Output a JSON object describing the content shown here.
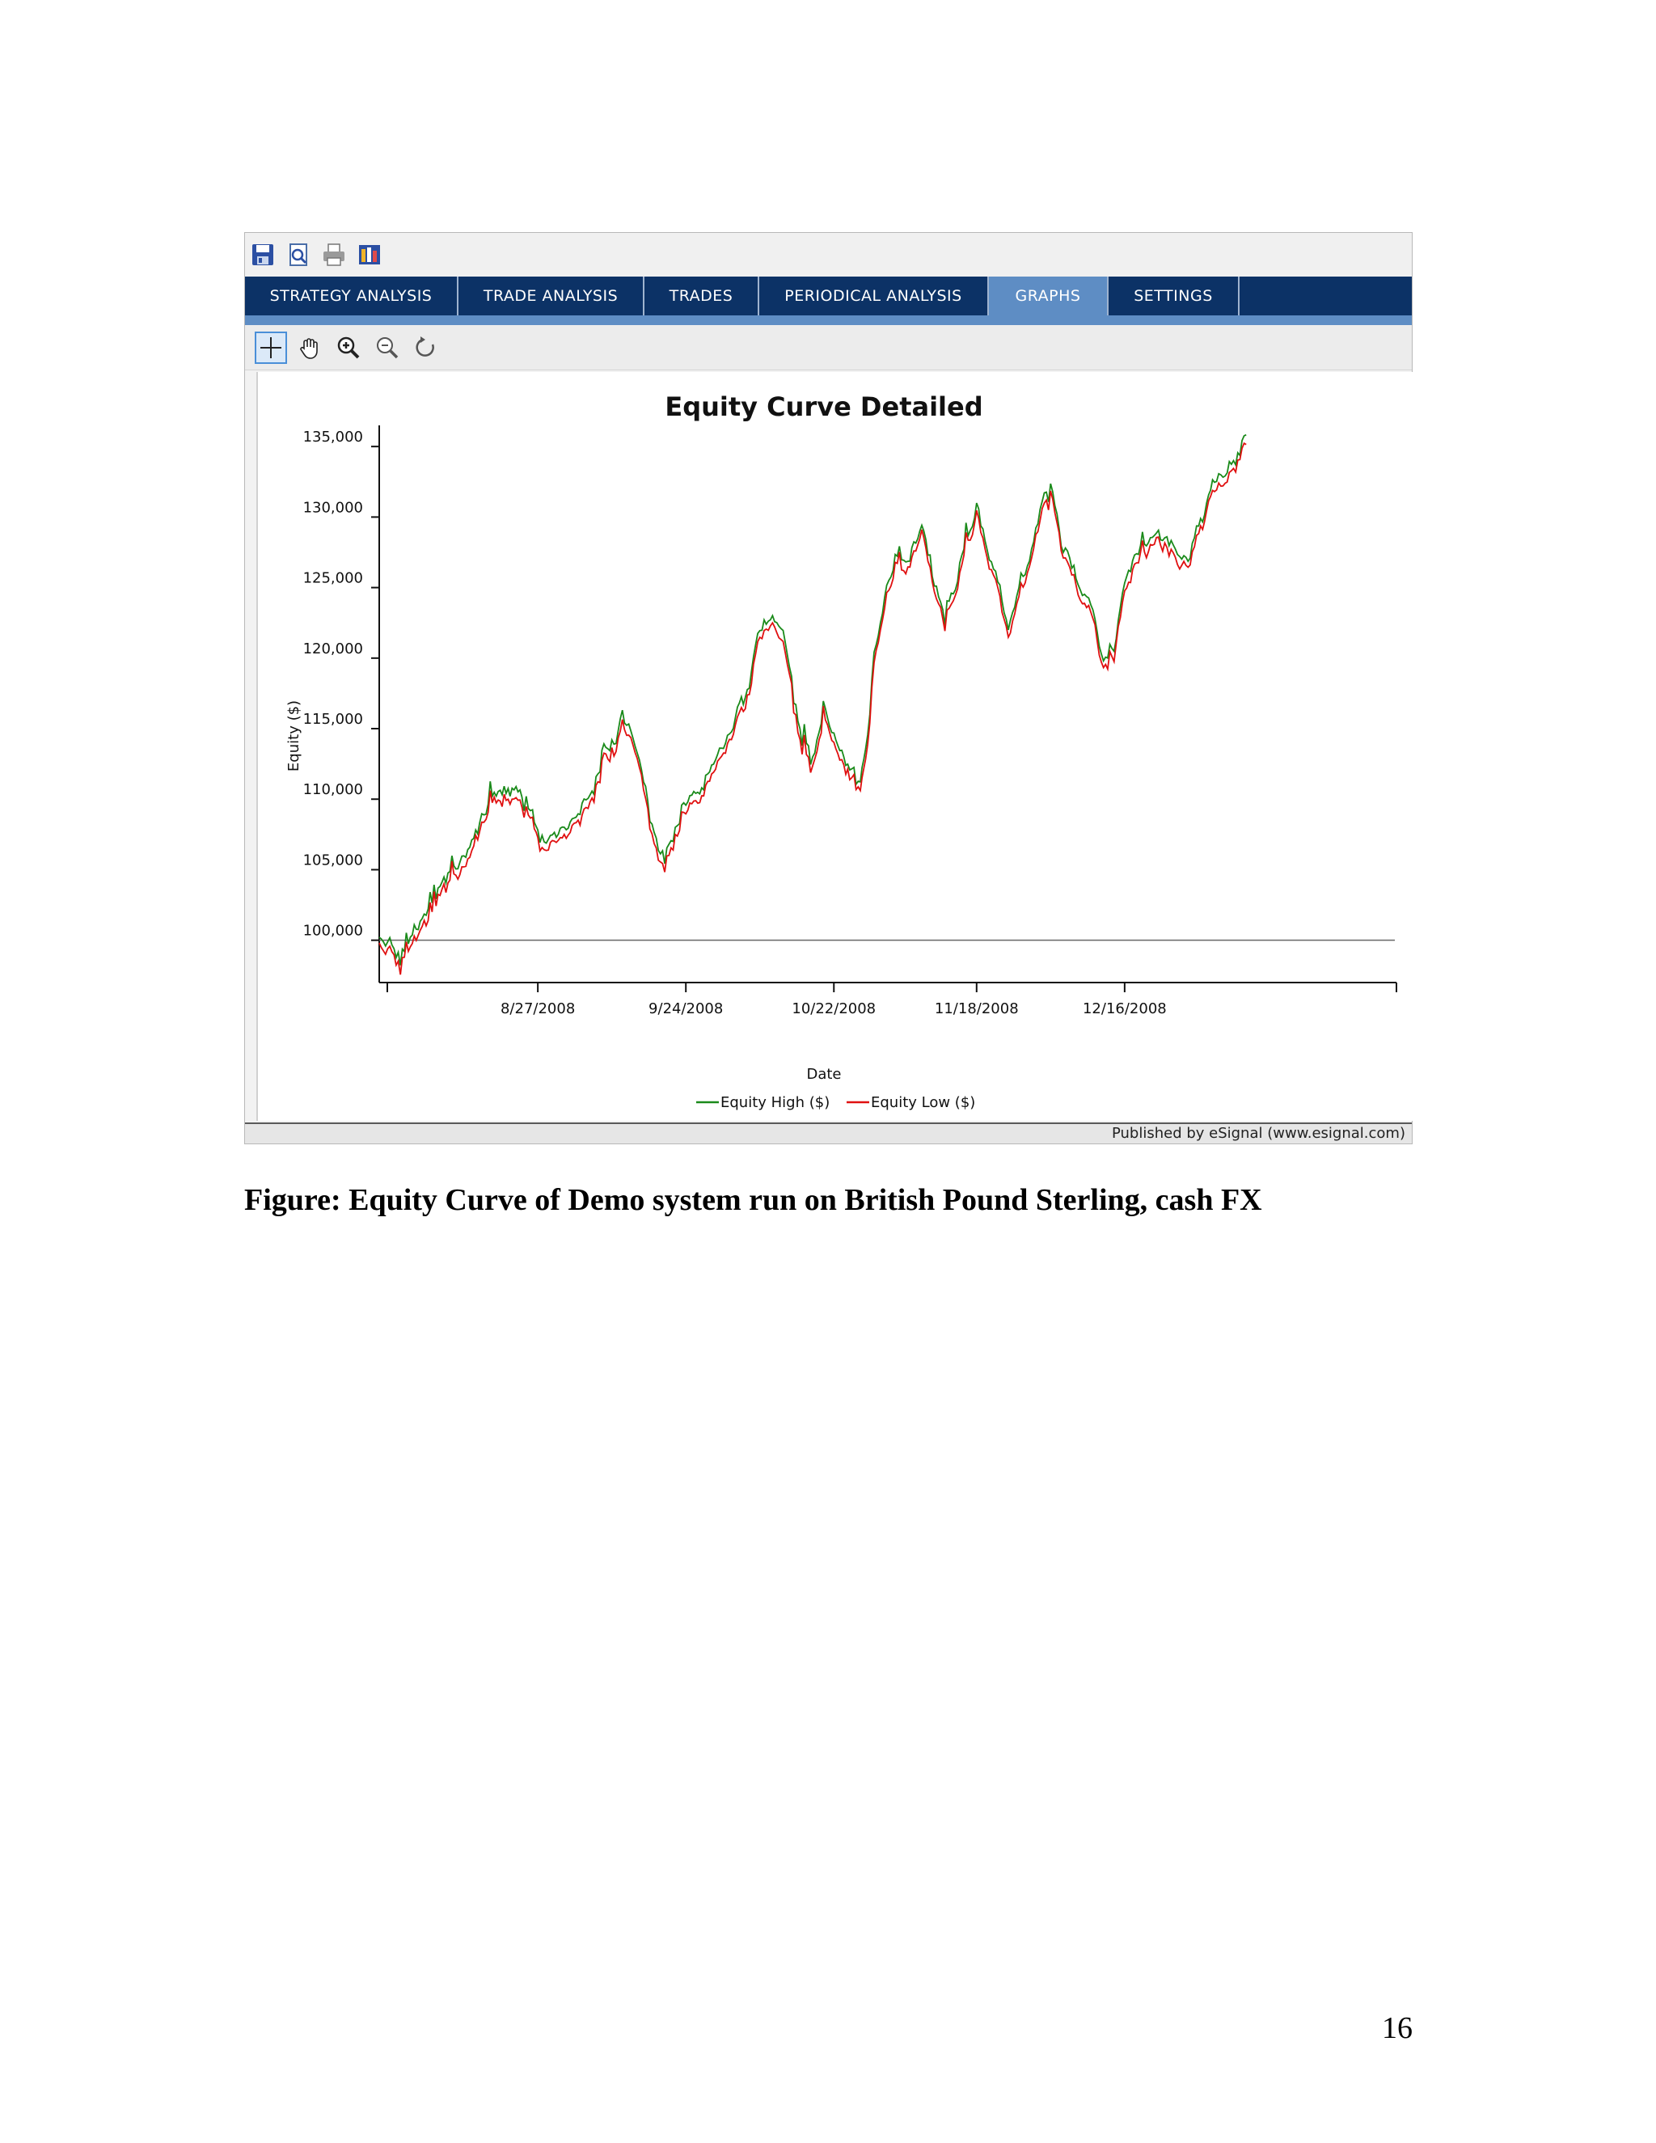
{
  "window": {
    "tabs": [
      {
        "label": "STRATEGY ANALYSIS",
        "active": false
      },
      {
        "label": "TRADE ANALYSIS",
        "active": false
      },
      {
        "label": "TRADES",
        "active": false
      },
      {
        "label": "PERIODICAL ANALYSIS",
        "active": false
      },
      {
        "label": "GRAPHS",
        "active": true
      },
      {
        "label": "SETTINGS",
        "active": false
      }
    ],
    "file_toolbar_icons": [
      "save-icon",
      "print-preview-icon",
      "print-icon",
      "export-icon"
    ],
    "chart_toolbar_icons": [
      "crosshair-icon",
      "pan-hand-icon",
      "zoom-in-icon",
      "zoom-out-icon",
      "reset-zoom-icon"
    ],
    "status_text": "Published by eSignal (www.esignal.com)",
    "colors": {
      "tab_bar": "#0c3266",
      "tab_active": "#5e8dc4",
      "equity_high": "#1a8a1a",
      "equity_low": "#e01010"
    }
  },
  "chart_data": {
    "type": "line",
    "title": "Equity Curve Detailed",
    "xlabel": "Date",
    "ylabel": "Equity ($)",
    "x_start": "7/28/2008",
    "x_end": "1/15/2009",
    "x_ticks": [
      "8/27/2008",
      "9/24/2008",
      "10/22/2008",
      "11/18/2008",
      "12/16/2008"
    ],
    "y_ticks": [
      "100,000",
      "105,000",
      "110,000",
      "115,000",
      "120,000",
      "125,000",
      "130,000",
      "135,000"
    ],
    "ylim": [
      97000,
      136500
    ],
    "baseline": 100000,
    "legend_position": "bottom",
    "grid": false,
    "series": [
      {
        "name": "Equity High ($)"
      },
      {
        "name": "Equity Low ($)"
      }
    ],
    "equity_path": [
      [
        "7/28/2008",
        100000
      ],
      [
        "7/30/2008",
        99200
      ],
      [
        "8/1/2008",
        98700
      ],
      [
        "8/4/2008",
        100600
      ],
      [
        "8/7/2008",
        102500
      ],
      [
        "8/10/2008",
        104000
      ],
      [
        "8/13/2008",
        106000
      ],
      [
        "8/16/2008",
        108000
      ],
      [
        "8/18/2008",
        110000
      ],
      [
        "8/21/2008",
        110300
      ],
      [
        "8/24/2008",
        109800
      ],
      [
        "8/26/2008",
        108700
      ],
      [
        "8/27/2008",
        106600
      ],
      [
        "8/29/2008",
        106500
      ],
      [
        "9/1/2008",
        107400
      ],
      [
        "9/4/2008",
        108800
      ],
      [
        "9/7/2008",
        111000
      ],
      [
        "9/10/2008",
        113500
      ],
      [
        "9/12/2008",
        115500
      ],
      [
        "9/14/2008",
        114500
      ],
      [
        "9/16/2008",
        110500
      ],
      [
        "9/18/2008",
        106800
      ],
      [
        "9/20/2008",
        105400
      ],
      [
        "9/22/2008",
        107300
      ],
      [
        "9/24/2008",
        109000
      ],
      [
        "9/27/2008",
        110700
      ],
      [
        "9/30/2008",
        113300
      ],
      [
        "10/3/2008",
        115200
      ],
      [
        "10/6/2008",
        118000
      ],
      [
        "10/8/2008",
        121400
      ],
      [
        "10/10/2008",
        123000
      ],
      [
        "10/12/2008",
        122400
      ],
      [
        "10/14/2008",
        117500
      ],
      [
        "10/16/2008",
        114000
      ],
      [
        "10/18/2008",
        112500
      ],
      [
        "10/20/2008",
        116300
      ],
      [
        "10/22/2008",
        114500
      ],
      [
        "10/25/2008",
        112000
      ],
      [
        "10/27/2008",
        110500
      ],
      [
        "10/28/2008",
        113200
      ],
      [
        "10/30/2008",
        120500
      ],
      [
        "11/1/2008",
        124800
      ],
      [
        "11/3/2008",
        127700
      ],
      [
        "11/5/2008",
        126500
      ],
      [
        "11/8/2008",
        128800
      ],
      [
        "11/10/2008",
        124500
      ],
      [
        "11/12/2008",
        123200
      ],
      [
        "11/14/2008",
        124300
      ],
      [
        "11/16/2008",
        128400
      ],
      [
        "11/18/2008",
        130500
      ],
      [
        "11/20/2008",
        127200
      ],
      [
        "11/22/2008",
        125000
      ],
      [
        "11/24/2008",
        121500
      ],
      [
        "11/26/2008",
        124800
      ],
      [
        "11/28/2008",
        127000
      ],
      [
        "11/30/2008",
        129800
      ],
      [
        "12/2/2008",
        132000
      ],
      [
        "12/4/2008",
        127700
      ],
      [
        "12/6/2008",
        126500
      ],
      [
        "12/8/2008",
        124200
      ],
      [
        "12/10/2008",
        122800
      ],
      [
        "12/12/2008",
        120000
      ],
      [
        "12/14/2008",
        120400
      ],
      [
        "12/16/2008",
        124800
      ],
      [
        "12/19/2008",
        127500
      ],
      [
        "12/22/2008",
        129000
      ],
      [
        "12/24/2008",
        128000
      ],
      [
        "12/26/2008",
        127500
      ],
      [
        "12/28/2008",
        126800
      ],
      [
        "12/30/2008",
        128800
      ],
      [
        "1/2/2009",
        131800
      ],
      [
        "1/4/2009",
        132800
      ],
      [
        "1/6/2009",
        133700
      ],
      [
        "1/8/2009",
        135600
      ]
    ]
  },
  "caption": "Figure: Equity Curve of Demo system run on British Pound Sterling, cash FX",
  "page_number": "16"
}
